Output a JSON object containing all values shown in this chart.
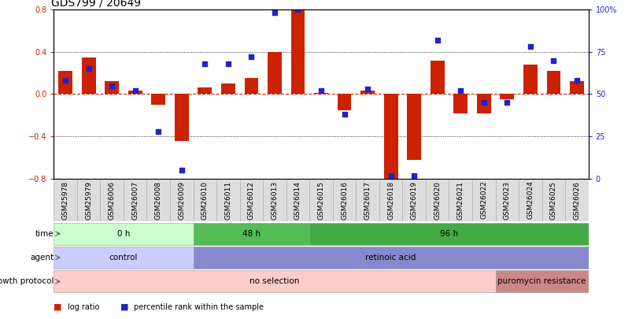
{
  "title": "GDS799 / 20649",
  "samples": [
    "GSM25978",
    "GSM25979",
    "GSM26006",
    "GSM26007",
    "GSM26008",
    "GSM26009",
    "GSM26010",
    "GSM26011",
    "GSM26012",
    "GSM26013",
    "GSM26014",
    "GSM26015",
    "GSM26016",
    "GSM26017",
    "GSM26018",
    "GSM26019",
    "GSM26020",
    "GSM26021",
    "GSM26022",
    "GSM26023",
    "GSM26024",
    "GSM26025",
    "GSM26026"
  ],
  "log_ratio": [
    0.22,
    0.35,
    0.12,
    0.03,
    -0.1,
    -0.44,
    0.06,
    0.1,
    0.15,
    0.4,
    0.82,
    0.01,
    -0.15,
    0.03,
    -0.8,
    -0.62,
    0.32,
    -0.18,
    -0.18,
    -0.05,
    0.28,
    0.22,
    0.12
  ],
  "percentile": [
    58,
    65,
    55,
    52,
    28,
    5,
    68,
    68,
    72,
    98,
    100,
    52,
    38,
    53,
    2,
    2,
    82,
    52,
    45,
    45,
    78,
    70,
    58
  ],
  "bar_color": "#cc2200",
  "dot_color": "#2222cc",
  "ylim_left": [
    -0.8,
    0.8
  ],
  "ylim_right": [
    0,
    100
  ],
  "yticks_left": [
    -0.8,
    -0.4,
    0.0,
    0.4,
    0.8
  ],
  "yticks_right": [
    0,
    25,
    50,
    75,
    100
  ],
  "hline_zero_color": "#cc2200",
  "time_segs": [
    {
      "label": "0 h",
      "start": 0,
      "end": 5,
      "color": "#ccffcc"
    },
    {
      "label": "48 h",
      "start": 6,
      "end": 10,
      "color": "#55bb55"
    },
    {
      "label": "96 h",
      "start": 11,
      "end": 22,
      "color": "#44aa44"
    }
  ],
  "agent_segs": [
    {
      "label": "control",
      "start": 0,
      "end": 5,
      "color": "#ccccff"
    },
    {
      "label": "retinoic acid",
      "start": 6,
      "end": 22,
      "color": "#8888cc"
    }
  ],
  "growth_segs": [
    {
      "label": "no selection",
      "start": 0,
      "end": 18,
      "color": "#ffcccc"
    },
    {
      "label": "puromycin resistance",
      "start": 19,
      "end": 22,
      "color": "#cc8888"
    }
  ],
  "row_labels": [
    "time",
    "agent",
    "growth protocol"
  ],
  "legend_items": [
    {
      "label": "log ratio",
      "color": "#cc2200"
    },
    {
      "label": "percentile rank within the sample",
      "color": "#2222cc"
    }
  ],
  "bg_color": "#ffffff",
  "title_color": "#000000",
  "title_fontsize": 10,
  "tick_label_fontsize": 6.5,
  "left_tick_color": "#cc2200",
  "right_tick_color": "#2222cc",
  "xticklabel_bg": "#dddddd",
  "annotation_fontsize": 7.5
}
